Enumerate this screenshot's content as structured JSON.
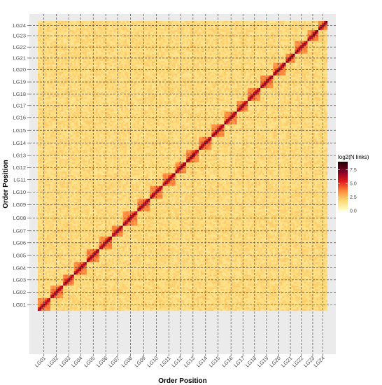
{
  "chart_data": {
    "type": "heatmap",
    "title": "",
    "xlabel": "Order Position",
    "ylabel": "Order Position",
    "categories": [
      "LG01",
      "LG02",
      "LG03",
      "LG04",
      "LG05",
      "LG06",
      "LG07",
      "LG08",
      "LG09",
      "LG10",
      "LG11",
      "LG12",
      "LG13",
      "LG14",
      "LG15",
      "LG16",
      "LG17",
      "LG18",
      "LG19",
      "LG20",
      "LG21",
      "LG22",
      "LG23",
      "LG24"
    ],
    "group_sizes": [
      1.0,
      1.05,
      0.95,
      1.0,
      1.05,
      1.0,
      0.95,
      1.15,
      1.0,
      1.05,
      1.0,
      0.95,
      1.05,
      1.0,
      1.05,
      1.05,
      0.9,
      1.0,
      0.95,
      1.05,
      0.85,
      0.95,
      0.9,
      0.75
    ],
    "color_scale": {
      "title": "log2(N links)",
      "ticks": [
        0.0,
        2.5,
        5.0,
        7.5
      ],
      "tick_labels": [
        "0.0",
        "2.5",
        "5.0",
        "7.5"
      ],
      "range": [
        0,
        9
      ],
      "colors": [
        "#ffffcc",
        "#fed976",
        "#fd8d3c",
        "#e31a1c",
        "#800026",
        "#200000"
      ]
    },
    "value_levels": {
      "background_min": 1.2,
      "background_max": 2.2,
      "within_group": 3.6,
      "diagonal": 6.5
    },
    "legend_position": "right",
    "grid": true,
    "panel_background": "#ebebeb"
  }
}
